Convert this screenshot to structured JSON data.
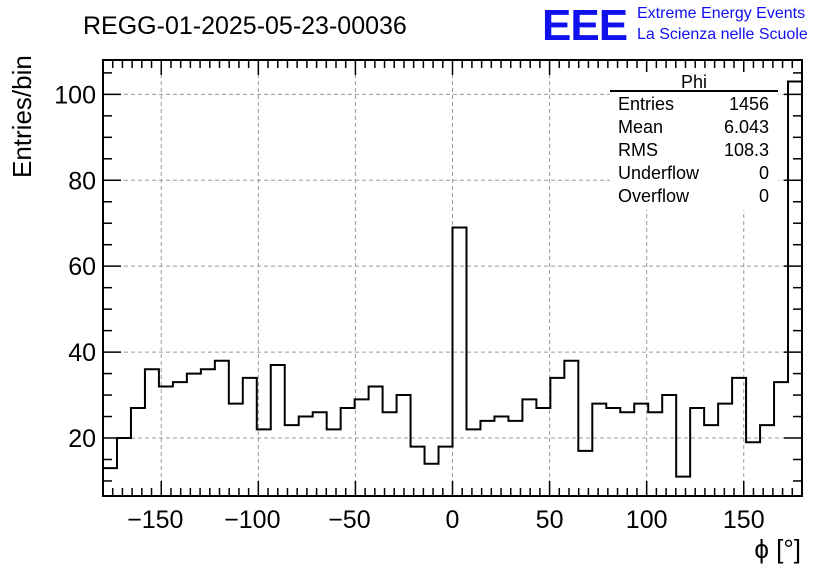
{
  "chart_data": {
    "type": "bar",
    "histogram": true,
    "title": "REGG-01-2025-05-23-00036",
    "xlabel": "ϕ [°]",
    "ylabel": "Entries/bin",
    "xlim": [
      -180,
      180
    ],
    "ylim": [
      6.5,
      108
    ],
    "xticks": [
      -150,
      -100,
      -50,
      0,
      50,
      100,
      150
    ],
    "yticks": [
      20,
      40,
      60,
      80,
      100
    ],
    "grid": true,
    "bin_width": 7.2,
    "values": [
      13,
      20,
      27,
      36,
      32,
      33,
      35,
      36,
      38,
      28,
      34,
      22,
      37,
      23,
      25,
      26,
      22,
      27,
      29,
      32,
      26,
      30,
      18,
      14,
      18,
      69,
      22,
      24,
      25,
      24,
      29,
      27,
      34,
      38,
      17,
      28,
      27,
      26,
      28,
      26,
      30,
      11,
      27,
      23,
      28,
      34,
      19,
      23,
      33,
      103
    ],
    "line_color": "#000000"
  },
  "stats": {
    "title": "Phi",
    "rows": [
      {
        "label": "Entries",
        "value": "1456"
      },
      {
        "label": "Mean",
        "value": "6.043"
      },
      {
        "label": "RMS",
        "value": "108.3"
      },
      {
        "label": "Underflow",
        "value": "0"
      },
      {
        "label": "Overflow",
        "value": "0"
      }
    ]
  },
  "logo": {
    "mark": "EEE",
    "line1": "Extreme Energy Events",
    "line2": "La Scienza nelle Scuole",
    "color": "#1010ee"
  }
}
